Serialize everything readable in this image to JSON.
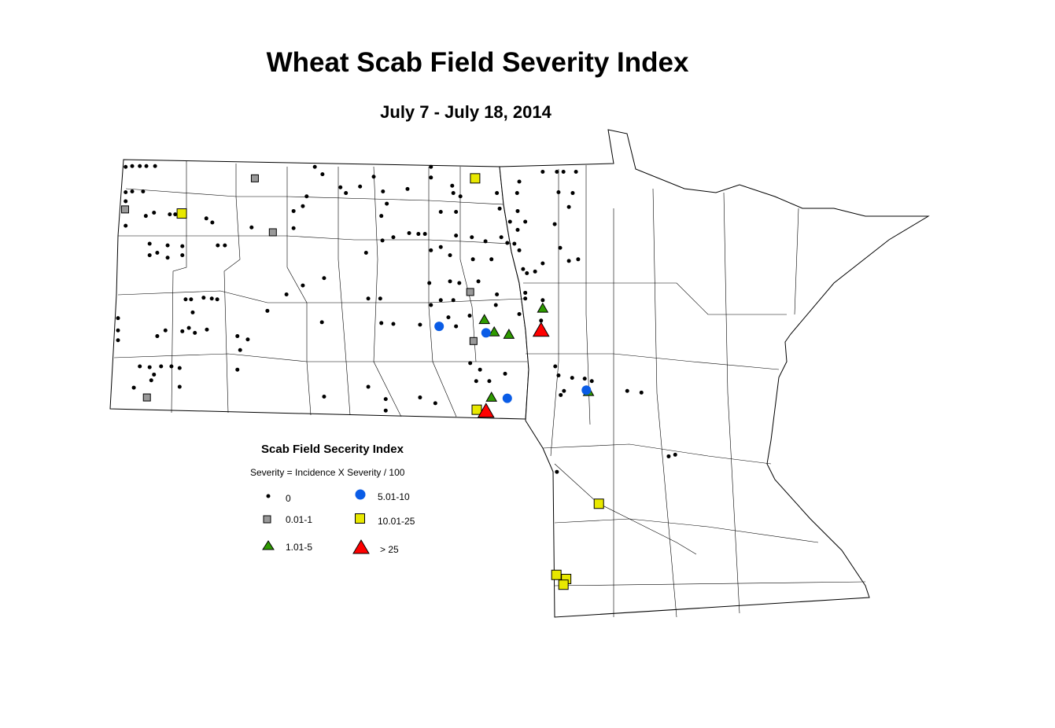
{
  "title": "Wheat Scab Field Severity Index",
  "subtitle": "July 7 - July 18, 2014",
  "legend": {
    "title": "Scab Field Secerity Index",
    "formula": "Severity = Incidence X Severity / 100",
    "classes": [
      {
        "label": "0",
        "symbol": "dot",
        "color": "#000000"
      },
      {
        "label": "0.01-1",
        "symbol": "square",
        "color": "#999999"
      },
      {
        "label": "1.01-5",
        "symbol": "triangle",
        "color": "#2e9a00"
      },
      {
        "label": "5.01-10",
        "symbol": "circle",
        "color": "#0a5ce6"
      },
      {
        "label": "10.01-25",
        "symbol": "square",
        "color": "#e8e800"
      },
      {
        "label": "> 25",
        "symbol": "triangle",
        "color": "#ff0000"
      }
    ]
  },
  "chart_data": {
    "type": "scatter",
    "title": "Wheat Scab Field Severity Index",
    "subtitle": "July 7 - July 18, 2014",
    "regions": [
      "North Dakota",
      "Minnesota"
    ],
    "series": [
      {
        "name": "0",
        "points": [
          [
            -103.91,
            48.93
          ],
          [
            -103.79,
            48.94
          ],
          [
            -103.65,
            48.94
          ],
          [
            -103.53,
            48.94
          ],
          [
            -103.37,
            48.94
          ],
          [
            -103.91,
            48.62
          ],
          [
            -103.79,
            48.63
          ],
          [
            -103.59,
            48.63
          ],
          [
            -103.91,
            48.51
          ],
          [
            -103.91,
            48.21
          ],
          [
            -103.54,
            48.33
          ],
          [
            -103.39,
            48.37
          ],
          [
            -103.1,
            48.35
          ],
          [
            -103.0,
            48.35
          ],
          [
            -103.47,
            47.99
          ],
          [
            -103.47,
            47.85
          ],
          [
            -103.33,
            47.88
          ],
          [
            -103.14,
            47.97
          ],
          [
            -103.14,
            47.82
          ],
          [
            -102.87,
            47.96
          ],
          [
            -102.87,
            47.85
          ],
          [
            -102.43,
            48.3
          ],
          [
            -102.32,
            48.25
          ],
          [
            -102.22,
            47.97
          ],
          [
            -102.09,
            47.97
          ],
          [
            -102.81,
            47.31
          ],
          [
            -102.71,
            47.31
          ],
          [
            -102.48,
            47.33
          ],
          [
            -102.33,
            47.32
          ],
          [
            -102.23,
            47.31
          ],
          [
            -102.68,
            47.15
          ],
          [
            -102.75,
            46.96
          ],
          [
            -103.18,
            46.93
          ],
          [
            -103.33,
            46.86
          ],
          [
            -102.87,
            46.92
          ],
          [
            -102.64,
            46.9
          ],
          [
            -102.42,
            46.94
          ],
          [
            -104.05,
            47.08
          ],
          [
            -104.05,
            46.93
          ],
          [
            -104.05,
            46.81
          ],
          [
            -103.65,
            46.49
          ],
          [
            -103.47,
            46.48
          ],
          [
            -103.26,
            46.49
          ],
          [
            -103.07,
            46.49
          ],
          [
            -103.39,
            46.39
          ],
          [
            -102.92,
            46.47
          ],
          [
            -102.92,
            46.24
          ],
          [
            -103.44,
            46.32
          ],
          [
            -103.76,
            46.23
          ],
          [
            -100.44,
            48.93
          ],
          [
            -100.3,
            48.84
          ],
          [
            -100.59,
            48.57
          ],
          [
            -99.97,
            48.68
          ],
          [
            -99.87,
            48.61
          ],
          [
            -99.61,
            48.69
          ],
          [
            -99.36,
            48.81
          ],
          [
            -99.19,
            48.63
          ],
          [
            -99.12,
            48.48
          ],
          [
            -99.22,
            48.33
          ],
          [
            -98.74,
            48.66
          ],
          [
            -98.31,
            48.93
          ],
          [
            -98.31,
            48.8
          ],
          [
            -97.92,
            48.7
          ],
          [
            -97.9,
            48.61
          ],
          [
            -98.13,
            48.38
          ],
          [
            -97.85,
            48.38
          ],
          [
            -97.77,
            48.57
          ],
          [
            -97.1,
            48.61
          ],
          [
            -97.05,
            48.42
          ],
          [
            -96.69,
            48.75
          ],
          [
            -96.73,
            48.61
          ],
          [
            -96.72,
            48.39
          ],
          [
            -96.26,
            48.87
          ],
          [
            -96.0,
            48.87
          ],
          [
            -95.88,
            48.87
          ],
          [
            -95.65,
            48.87
          ],
          [
            -95.97,
            48.62
          ],
          [
            -95.71,
            48.61
          ],
          [
            -95.78,
            48.44
          ],
          [
            -96.86,
            48.26
          ],
          [
            -96.72,
            48.16
          ],
          [
            -96.58,
            48.26
          ],
          [
            -96.04,
            48.23
          ],
          [
            -101.6,
            48.19
          ],
          [
            -100.83,
            48.18
          ],
          [
            -101.31,
            47.17
          ],
          [
            -100.66,
            47.48
          ],
          [
            -100.27,
            47.57
          ],
          [
            -100.96,
            47.37
          ],
          [
            -100.31,
            47.03
          ],
          [
            -100.83,
            48.39
          ],
          [
            -100.66,
            48.45
          ],
          [
            -99.0,
            48.07
          ],
          [
            -98.71,
            48.12
          ],
          [
            -98.54,
            48.11
          ],
          [
            -98.42,
            48.11
          ],
          [
            -99.2,
            48.03
          ],
          [
            -99.5,
            47.88
          ],
          [
            -98.31,
            47.91
          ],
          [
            -98.13,
            47.95
          ],
          [
            -97.85,
            48.09
          ],
          [
            -97.56,
            48.07
          ],
          [
            -97.31,
            48.02
          ],
          [
            -97.02,
            48.07
          ],
          [
            -97.96,
            47.85
          ],
          [
            -97.2,
            47.8
          ],
          [
            -97.54,
            47.8
          ],
          [
            -96.91,
            48.0
          ],
          [
            -96.78,
            47.99
          ],
          [
            -96.69,
            47.91
          ],
          [
            -96.62,
            47.68
          ],
          [
            -96.55,
            47.63
          ],
          [
            -96.4,
            47.65
          ],
          [
            -96.26,
            47.75
          ],
          [
            -95.94,
            47.94
          ],
          [
            -95.78,
            47.78
          ],
          [
            -95.61,
            47.8
          ],
          [
            -98.34,
            47.51
          ],
          [
            -97.96,
            47.53
          ],
          [
            -97.79,
            47.51
          ],
          [
            -97.44,
            47.53
          ],
          [
            -97.1,
            47.37
          ],
          [
            -96.58,
            47.39
          ],
          [
            -96.58,
            47.32
          ],
          [
            -96.69,
            47.13
          ],
          [
            -96.26,
            47.3
          ],
          [
            -96.29,
            47.05
          ],
          [
            -97.9,
            47.3
          ],
          [
            -98.13,
            47.3
          ],
          [
            -98.31,
            47.24
          ],
          [
            -97.99,
            47.09
          ],
          [
            -97.85,
            46.98
          ],
          [
            -97.6,
            47.11
          ],
          [
            -97.12,
            47.24
          ],
          [
            -99.46,
            47.32
          ],
          [
            -99.24,
            47.32
          ],
          [
            -99.22,
            47.02
          ],
          [
            -99.0,
            47.01
          ],
          [
            -98.51,
            47.0
          ],
          [
            -97.59,
            46.53
          ],
          [
            -97.41,
            46.45
          ],
          [
            -97.48,
            46.31
          ],
          [
            -97.24,
            46.31
          ],
          [
            -96.95,
            46.4
          ],
          [
            -96.03,
            46.49
          ],
          [
            -95.97,
            46.38
          ],
          [
            -95.93,
            46.14
          ],
          [
            -95.72,
            46.35
          ],
          [
            -95.49,
            46.34
          ],
          [
            -95.36,
            46.31
          ],
          [
            -95.87,
            46.19
          ],
          [
            -94.71,
            46.19
          ],
          [
            -94.45,
            46.17
          ],
          [
            -93.95,
            45.39
          ],
          [
            -93.83,
            45.41
          ],
          [
            -101.86,
            46.86
          ],
          [
            -101.67,
            46.82
          ],
          [
            -101.86,
            46.45
          ],
          [
            -100.27,
            46.12
          ],
          [
            -99.46,
            46.24
          ],
          [
            -99.14,
            46.09
          ],
          [
            -99.14,
            45.95
          ],
          [
            -98.23,
            46.04
          ],
          [
            -98.51,
            46.11
          ],
          [
            -101.81,
            46.69
          ],
          [
            -96.0,
            45.2
          ]
        ]
      },
      {
        "name": "0.01-1",
        "points": [
          [
            -103.92,
            48.41
          ],
          [
            -101.54,
            48.79
          ],
          [
            -101.21,
            48.13
          ],
          [
            -97.59,
            47.4
          ],
          [
            -97.53,
            46.8
          ],
          [
            -103.52,
            46.11
          ]
        ]
      },
      {
        "name": "1.01-5",
        "points": [
          [
            -97.33,
            47.06
          ],
          [
            -97.15,
            46.91
          ],
          [
            -96.88,
            46.88
          ],
          [
            -96.26,
            47.2
          ],
          [
            -97.2,
            46.11
          ],
          [
            -95.42,
            46.18
          ]
        ]
      },
      {
        "name": "5.01-10",
        "points": [
          [
            -98.16,
            46.98
          ],
          [
            -97.3,
            46.9
          ],
          [
            -96.91,
            46.1
          ],
          [
            -95.46,
            46.2
          ]
        ]
      },
      {
        "name": "10.01-25",
        "points": [
          [
            -97.5,
            48.79
          ],
          [
            -102.88,
            48.36
          ],
          [
            -97.47,
            45.96
          ],
          [
            -95.23,
            44.81
          ],
          [
            -96.01,
            43.94
          ],
          [
            -95.83,
            43.89
          ],
          [
            -95.88,
            43.82
          ]
        ]
      },
      {
        "name": "> 25",
        "points": [
          [
            -96.29,
            46.93
          ],
          [
            -97.3,
            45.94
          ]
        ]
      }
    ]
  }
}
